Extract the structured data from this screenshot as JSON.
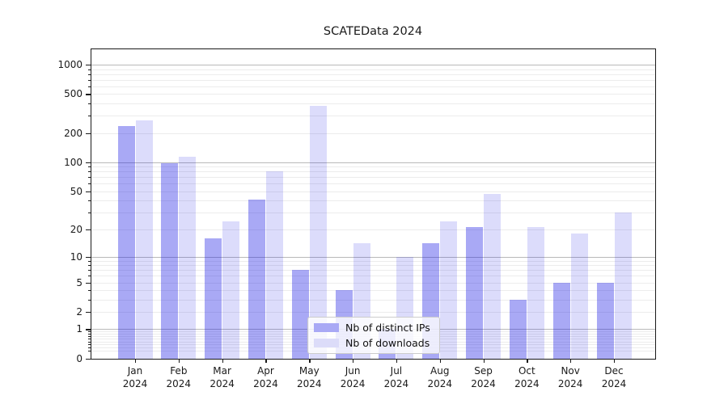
{
  "chart_data": {
    "type": "bar",
    "title": "SCATEData 2024",
    "months": [
      "Jan",
      "Feb",
      "Mar",
      "Apr",
      "May",
      "Jun",
      "Jul",
      "Aug",
      "Sep",
      "Oct",
      "Nov",
      "Dec"
    ],
    "year_label": "2024",
    "series": [
      {
        "name": "Nb of distinct IPs",
        "color_rgba": "rgba(30,30,230,0.38)",
        "color_hex": "#a9a9f5",
        "values": [
          235,
          98,
          16,
          41,
          7,
          4,
          1,
          14,
          21,
          3,
          5,
          5
        ]
      },
      {
        "name": "Nb of downloads",
        "color_rgba": "rgba(20,20,225,0.15)",
        "color_hex": "#dcdcf9",
        "values": [
          270,
          115,
          24,
          80,
          380,
          14,
          10,
          24,
          47,
          21,
          18,
          30
        ]
      }
    ],
    "y_axis": {
      "scale": "log1p",
      "ticks": [
        0,
        1,
        2,
        5,
        10,
        20,
        50,
        100,
        200,
        500,
        1000
      ],
      "major_decades": [
        1,
        10,
        100,
        1000
      ],
      "grid": "on"
    },
    "x_axis": {
      "tick_count": 12
    },
    "legend": {
      "position": "lower-center",
      "frame": true
    },
    "colors": {
      "grid_major": "#b9b9b9",
      "grid_minor": "#ececec",
      "spine": "#1a1a1a",
      "text": "#1a1a1a",
      "background": "#ffffff"
    }
  }
}
